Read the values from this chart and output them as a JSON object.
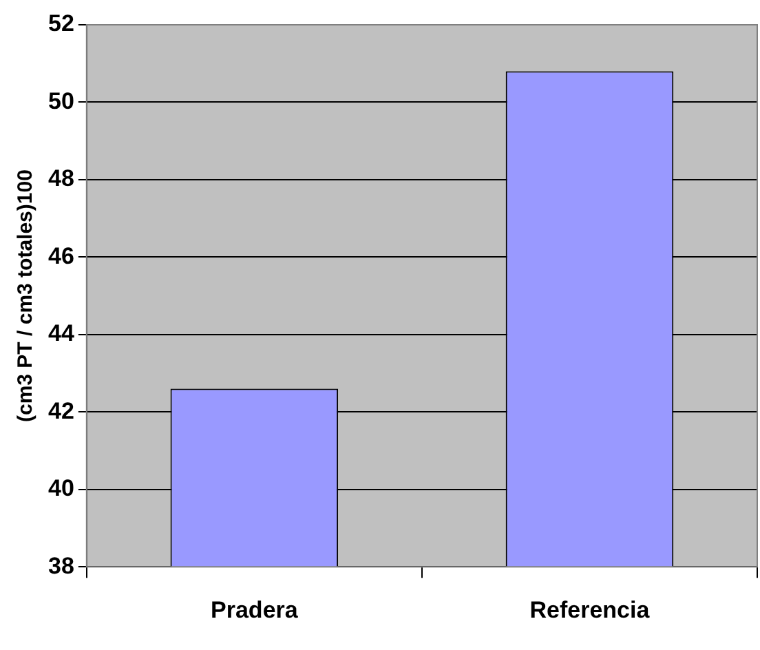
{
  "chart_data": {
    "type": "bar",
    "ylabel": "(cm3 PT / cm3 totales)100",
    "categories": [
      "Pradera",
      "Referencia"
    ],
    "values": [
      42.6,
      50.8
    ],
    "color": "#9999ff",
    "ylim": [
      38,
      52
    ],
    "yticks": [
      38,
      40,
      42,
      44,
      46,
      48,
      50,
      52
    ],
    "grid": "y",
    "legend": false
  }
}
